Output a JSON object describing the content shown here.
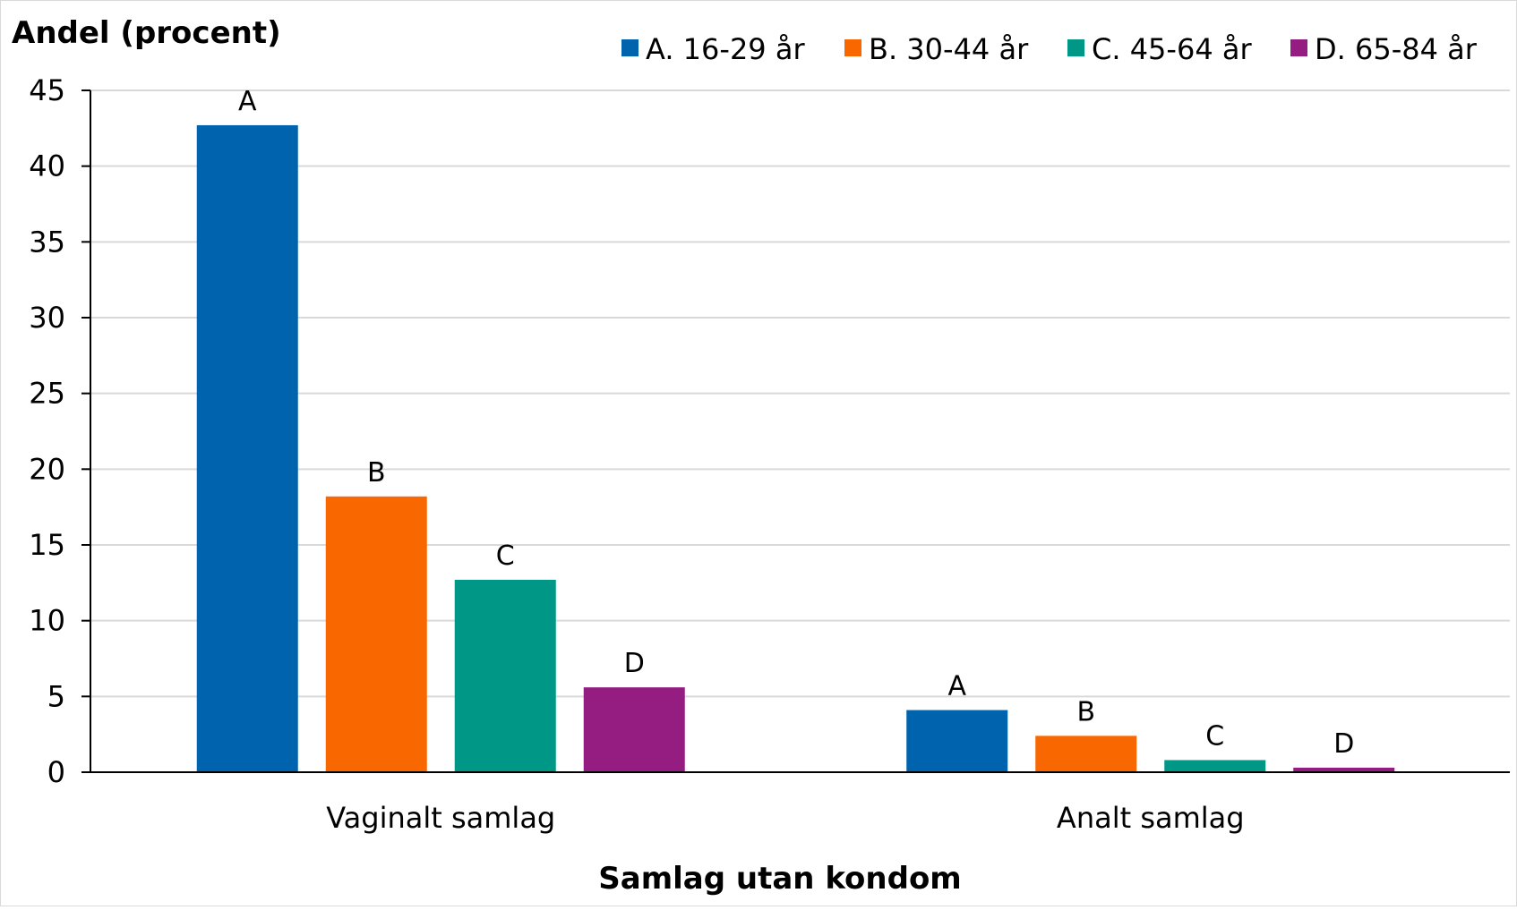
{
  "chart_data": {
    "type": "bar",
    "title": "",
    "ylabel": "Andel (procent)",
    "xlabel": "Samlag utan kondom",
    "ylim": [
      0,
      45
    ],
    "yticks": [
      0,
      5,
      10,
      15,
      20,
      25,
      30,
      35,
      40,
      45
    ],
    "grid": true,
    "legend_position": "top-right",
    "categories": [
      "Vaginalt samlag",
      "Analt samlag"
    ],
    "series": [
      {
        "name": "A. 16-29 år",
        "label": "A",
        "color": "#0063AE",
        "values": [
          42.7,
          4.1
        ]
      },
      {
        "name": "B. 30-44 år",
        "label": "B",
        "color": "#F96700",
        "values": [
          18.2,
          2.4
        ]
      },
      {
        "name": "C. 45-64 år",
        "label": "C",
        "color": "#009787",
        "values": [
          12.7,
          0.8
        ]
      },
      {
        "name": "D. 65-84 år",
        "label": "D",
        "color": "#951C80",
        "values": [
          5.6,
          0.3
        ]
      }
    ]
  }
}
